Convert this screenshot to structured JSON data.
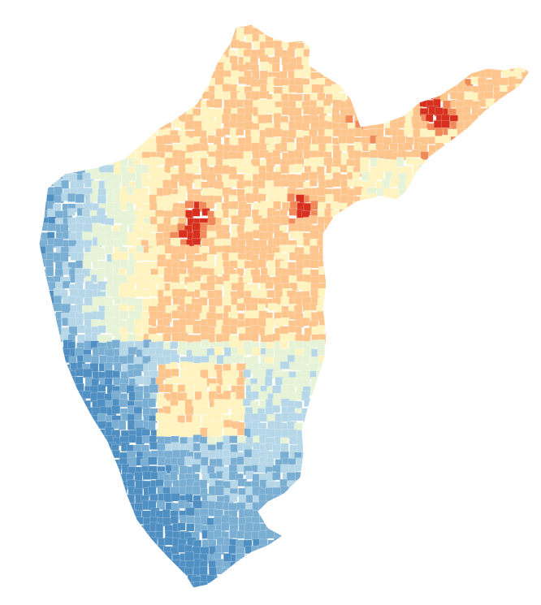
{
  "map": {
    "type": "choropleth",
    "color_scale": {
      "name": "diverging-red-yellow-blue",
      "stops": [
        "#d7301f",
        "#f08a5a",
        "#fdc48c",
        "#fff3bf",
        "#e6f3d6",
        "#b5d7e8",
        "#7aaed3",
        "#4f8fc2"
      ]
    },
    "label_text": []
  }
}
